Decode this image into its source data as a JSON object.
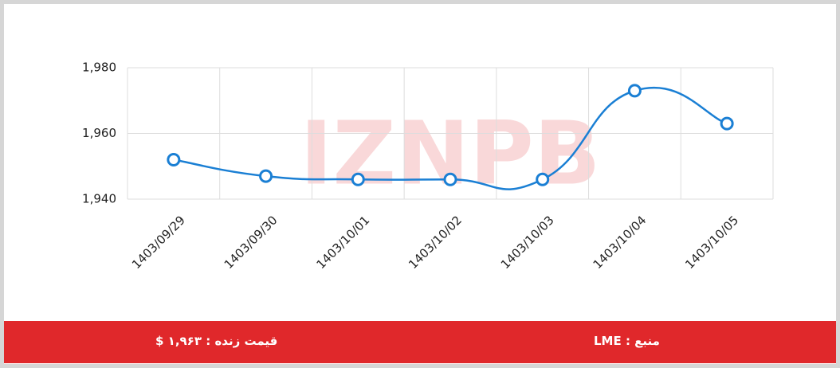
{
  "chart_data": {
    "type": "line",
    "categories": [
      "1403/09/29",
      "1403/09/30",
      "1403/10/01",
      "1403/10/02",
      "1403/10/03",
      "1403/10/04",
      "1403/10/05"
    ],
    "values": [
      1952,
      1947,
      1946,
      1946,
      1946,
      1973,
      1963
    ],
    "color": "#1a7fd4",
    "ylim": [
      1940,
      1980
    ],
    "yticks": [
      {
        "value": 1940,
        "label": "1,940"
      },
      {
        "value": 1960,
        "label": "1,960"
      },
      {
        "value": 1980,
        "label": "1,980"
      }
    ],
    "grid": true
  },
  "watermark": "IZNPB",
  "footer": {
    "price": "قیمت زنده : ۱,۹۶۳ $",
    "source": "منبع : LME"
  }
}
